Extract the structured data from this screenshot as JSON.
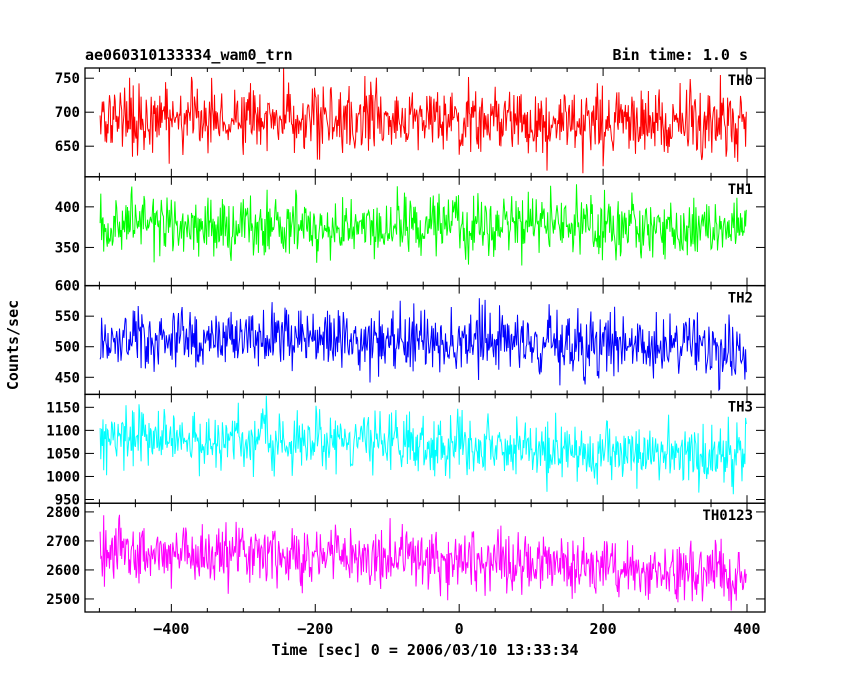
{
  "header": {
    "title": "ae060310133334_wam0_trn",
    "bin_time": "Bin time: 1.0 s"
  },
  "chart_data": {
    "type": "line",
    "xlabel": "Time [sec] 0 = 2006/03/10 13:33:34",
    "ylabel": "Counts/sec",
    "x_ticks": [
      -400,
      -200,
      0,
      200,
      400
    ],
    "x_tick_labels": [
      "−400",
      "−200",
      "0",
      "200",
      "400"
    ],
    "xlim": [
      -520,
      425
    ],
    "x_data_range": [
      -499,
      399
    ],
    "panels": [
      {
        "name": "TH0",
        "color": "#ff0000",
        "ylim": [
          605,
          765
        ],
        "yticks": [
          650,
          700,
          750
        ],
        "trend": [
          [
            -500,
            693
          ],
          [
            -200,
            690
          ],
          [
            0,
            690
          ],
          [
            400,
            683
          ]
        ],
        "amplitude": 26
      },
      {
        "name": "TH1",
        "color": "#00ff00",
        "ylim": [
          303,
          437
        ],
        "yticks": [
          350,
          400
        ],
        "trend": [
          [
            -500,
            380
          ],
          [
            -200,
            378
          ],
          [
            0,
            377
          ],
          [
            400,
            373
          ]
        ],
        "amplitude": 19
      },
      {
        "name": "TH2",
        "color": "#0000ff",
        "ylim": [
          422,
          600
        ],
        "yticks": [
          450,
          500,
          550,
          600
        ],
        "trend": [
          [
            -500,
            520
          ],
          [
            -200,
            512
          ],
          [
            0,
            507
          ],
          [
            400,
            498
          ]
        ],
        "amplitude": 25
      },
      {
        "name": "TH3",
        "color": "#00ffff",
        "ylim": [
          942,
          1178
        ],
        "yticks": [
          950,
          1000,
          1050,
          1100,
          1150
        ],
        "trend": [
          [
            -500,
            1090
          ],
          [
            -200,
            1080
          ],
          [
            0,
            1065
          ],
          [
            400,
            1040
          ]
        ],
        "amplitude": 33
      },
      {
        "name": "TH0123",
        "color": "#ff00ff",
        "ylim": [
          2455,
          2830
        ],
        "yticks": [
          2500,
          2600,
          2700,
          2800
        ],
        "trend": [
          [
            -500,
            2665
          ],
          [
            -200,
            2652
          ],
          [
            0,
            2635
          ],
          [
            400,
            2575
          ]
        ],
        "amplitude": 52
      }
    ]
  }
}
